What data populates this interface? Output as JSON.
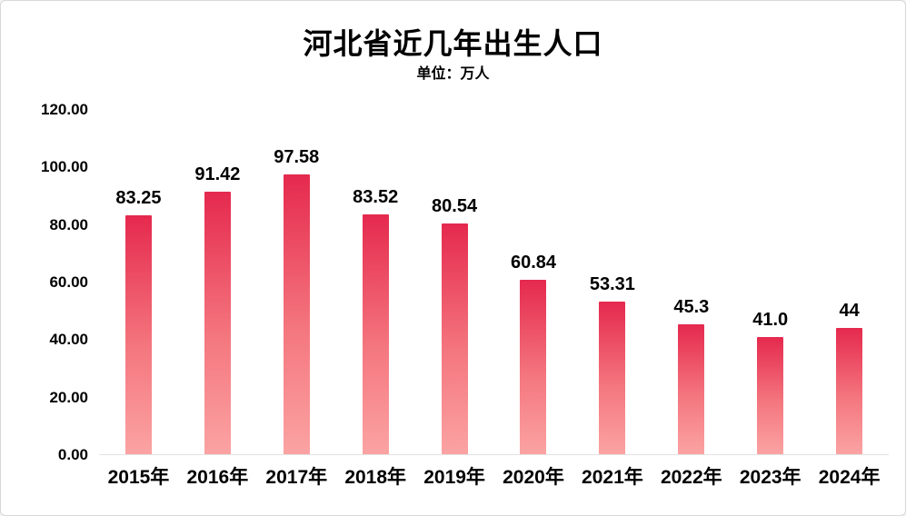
{
  "chart_data": {
    "type": "bar",
    "title": "河北省近几年出生人口",
    "subtitle": "单位：万人",
    "categories": [
      "2015年",
      "2016年",
      "2017年",
      "2018年",
      "2019年",
      "2020年",
      "2021年",
      "2022年",
      "2023年",
      "2024年"
    ],
    "values": [
      83.25,
      91.42,
      97.58,
      83.52,
      80.54,
      60.84,
      53.31,
      45.3,
      41.0,
      44
    ],
    "value_labels": [
      "83.25",
      "91.42",
      "97.58",
      "83.52",
      "80.54",
      "60.84",
      "53.31",
      "45.3",
      "41.0",
      "44"
    ],
    "xlabel": "",
    "ylabel": "",
    "ylim": [
      0,
      120
    ],
    "yticks": [
      0,
      20,
      40,
      60,
      80,
      100,
      120
    ],
    "ytick_labels": [
      "0.00",
      "20.00",
      "40.00",
      "60.00",
      "80.00",
      "100.00",
      "120.00"
    ],
    "grid": false,
    "legend_position": "none",
    "bar_color_top": "#e5294e",
    "bar_color_mid": "#f4767e",
    "bar_color_bottom": "#fba3a3",
    "text_color": "#000000",
    "background_color": "#ffffff"
  }
}
